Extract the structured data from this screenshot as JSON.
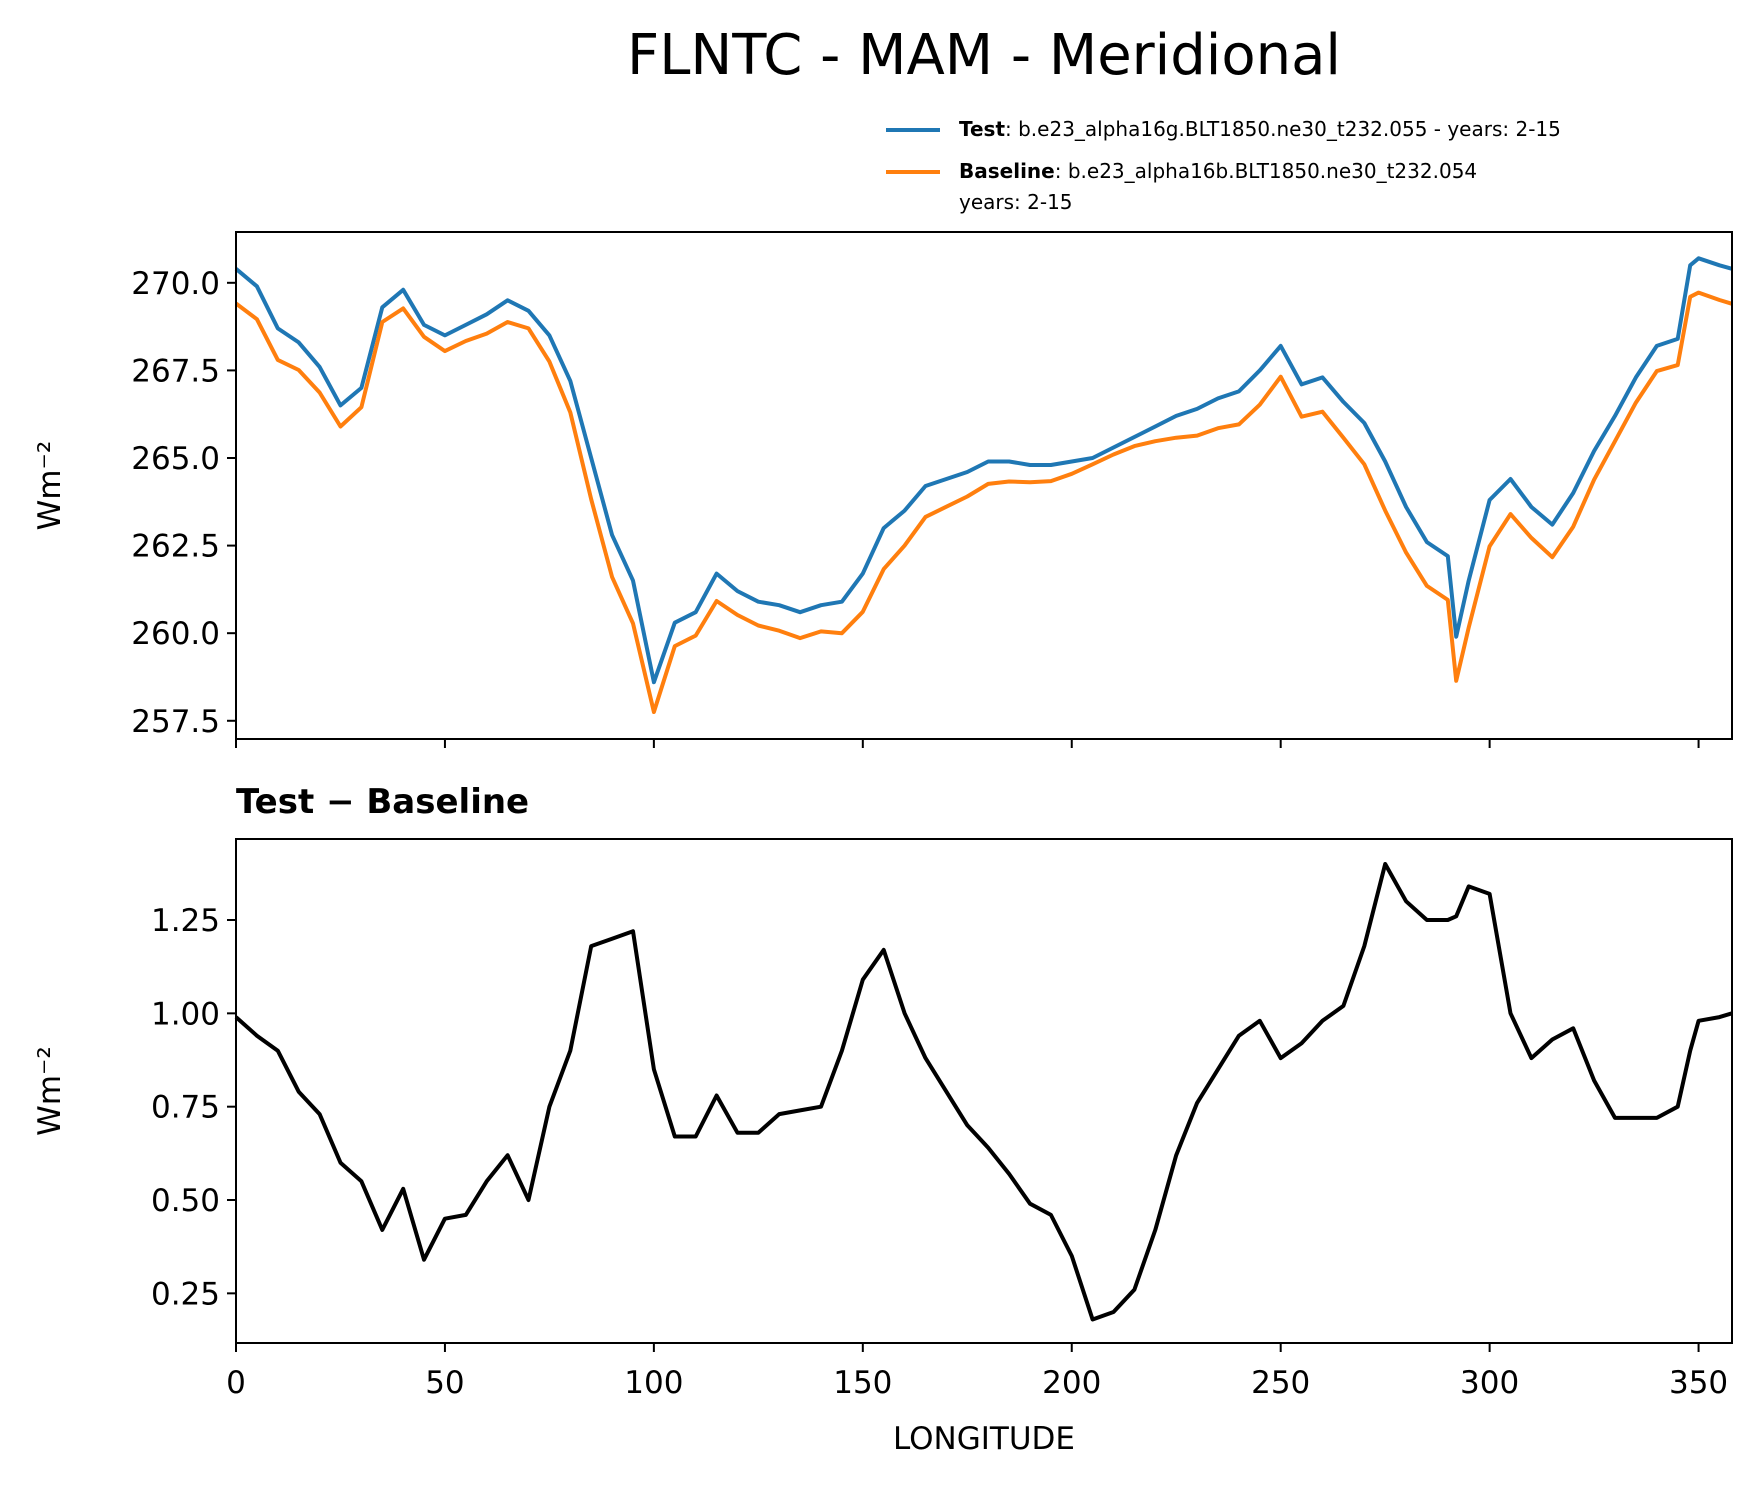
{
  "title": "FLNTC - MAM - Meridional",
  "chart_data": [
    {
      "type": "line",
      "ylabel": "Wm⁻²",
      "x": [
        0,
        5,
        10,
        15,
        20,
        25,
        30,
        35,
        40,
        45,
        50,
        55,
        60,
        65,
        70,
        75,
        80,
        85,
        90,
        95,
        100,
        105,
        110,
        115,
        120,
        125,
        130,
        135,
        140,
        145,
        150,
        155,
        160,
        165,
        170,
        175,
        180,
        185,
        190,
        195,
        200,
        205,
        210,
        215,
        220,
        225,
        230,
        235,
        240,
        245,
        250,
        255,
        260,
        265,
        270,
        275,
        280,
        285,
        290,
        292,
        295,
        300,
        305,
        310,
        315,
        320,
        325,
        330,
        335,
        340,
        345,
        348,
        350,
        355,
        358
      ],
      "series": [
        {
          "name": "Test",
          "description": [
            ": b.e23_alpha16g.BLT1850.ne30_t232.055 - years: 2-15"
          ],
          "color": "#1f77b4",
          "values": [
            270.4,
            269.9,
            268.7,
            268.3,
            267.6,
            266.5,
            267.0,
            269.3,
            269.8,
            268.8,
            268.5,
            268.8,
            269.1,
            269.5,
            269.2,
            268.5,
            267.2,
            265.0,
            262.8,
            261.5,
            258.6,
            260.3,
            260.6,
            261.7,
            261.2,
            260.9,
            260.8,
            260.6,
            260.8,
            260.9,
            261.7,
            263.0,
            263.5,
            264.2,
            264.4,
            264.6,
            264.9,
            264.9,
            264.8,
            264.8,
            264.9,
            265.0,
            265.3,
            265.6,
            265.9,
            266.2,
            266.4,
            266.7,
            266.9,
            267.5,
            268.2,
            267.1,
            267.3,
            266.6,
            266.0,
            264.9,
            263.6,
            262.6,
            262.2,
            259.9,
            261.5,
            263.8,
            264.4,
            263.6,
            263.1,
            264.0,
            265.2,
            266.2,
            267.3,
            268.2,
            268.4,
            270.5,
            270.7,
            270.5,
            270.4
          ]
        },
        {
          "name": "Baseline",
          "description": [
            ": b.e23_alpha16b.BLT1850.ne30_t232.054",
            "years: 2-15"
          ],
          "color": "#ff7f0e",
          "values": [
            269.41,
            268.96,
            267.8,
            267.51,
            266.87,
            265.9,
            266.45,
            268.88,
            269.27,
            268.46,
            268.05,
            268.34,
            268.55,
            268.88,
            268.7,
            267.75,
            266.3,
            263.82,
            261.6,
            260.28,
            257.75,
            259.63,
            259.93,
            260.92,
            260.52,
            260.22,
            260.07,
            259.86,
            260.05,
            260.0,
            260.61,
            261.83,
            262.5,
            263.32,
            263.61,
            263.9,
            264.26,
            264.33,
            264.31,
            264.34,
            264.55,
            264.82,
            265.1,
            265.34,
            265.48,
            265.58,
            265.64,
            265.85,
            265.96,
            266.52,
            267.32,
            266.18,
            266.32,
            265.58,
            264.82,
            263.5,
            262.3,
            261.35,
            260.95,
            258.64,
            260.16,
            262.48,
            263.4,
            262.72,
            262.17,
            263.04,
            264.38,
            265.48,
            266.58,
            267.48,
            267.65,
            269.6,
            269.72,
            269.51,
            269.4
          ]
        }
      ],
      "xlim": [
        0,
        358
      ],
      "xticks": [
        0,
        50,
        100,
        150,
        200,
        250,
        300,
        350
      ],
      "xticklabels": false,
      "ylim": [
        256.98,
        271.45
      ],
      "yticks": [
        257.5,
        {
          "value": 260,
          "label": "260.0"
        },
        262.5,
        {
          "value": 265,
          "label": "265.0"
        },
        267.5,
        {
          "value": 270,
          "label": "270.0"
        }
      ]
    },
    {
      "type": "line",
      "subtitle": "Test − Baseline",
      "ylabel": "Wm⁻²",
      "xlabel": "LONGITUDE",
      "x": [
        0,
        5,
        10,
        15,
        20,
        25,
        30,
        35,
        40,
        45,
        50,
        55,
        60,
        65,
        70,
        75,
        80,
        85,
        90,
        95,
        100,
        105,
        110,
        115,
        120,
        125,
        130,
        135,
        140,
        145,
        150,
        155,
        160,
        165,
        170,
        175,
        180,
        185,
        190,
        195,
        200,
        205,
        210,
        215,
        220,
        225,
        230,
        235,
        240,
        245,
        250,
        255,
        260,
        265,
        270,
        275,
        280,
        285,
        290,
        292,
        295,
        300,
        305,
        310,
        315,
        320,
        325,
        330,
        335,
        340,
        345,
        348,
        350,
        355,
        358
      ],
      "series": [
        {
          "color": "#000000",
          "values": [
            0.99,
            0.94,
            0.9,
            0.79,
            0.73,
            0.6,
            0.55,
            0.42,
            0.53,
            0.34,
            0.45,
            0.46,
            0.55,
            0.62,
            0.5,
            0.75,
            0.9,
            1.18,
            1.2,
            1.22,
            0.85,
            0.67,
            0.67,
            0.78,
            0.68,
            0.68,
            0.73,
            0.74,
            0.75,
            0.9,
            1.09,
            1.17,
            1.0,
            0.88,
            0.79,
            0.7,
            0.64,
            0.57,
            0.49,
            0.46,
            0.35,
            0.18,
            0.2,
            0.26,
            0.42,
            0.62,
            0.76,
            0.85,
            0.94,
            0.98,
            0.88,
            0.92,
            0.98,
            1.02,
            1.18,
            1.4,
            1.3,
            1.25,
            1.25,
            1.26,
            1.34,
            1.32,
            1.0,
            0.88,
            0.93,
            0.96,
            0.82,
            0.72,
            0.72,
            0.72,
            0.75,
            0.9,
            0.98,
            0.99,
            1.0
          ]
        }
      ],
      "xlim": [
        0,
        358
      ],
      "xticks": [
        0,
        50,
        100,
        150,
        200,
        250,
        300,
        350
      ],
      "xticklabels": true,
      "ylim": [
        0.117,
        1.467
      ],
      "yticks": [
        0.25,
        {
          "value": 0.5,
          "label": "0.50"
        },
        0.75,
        {
          "value": 1,
          "label": "1.00"
        },
        1.25
      ]
    }
  ]
}
